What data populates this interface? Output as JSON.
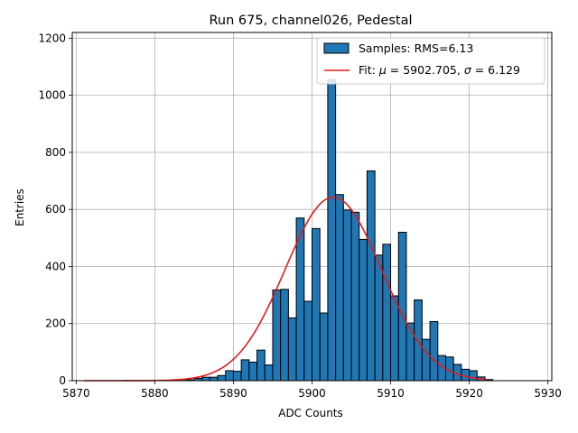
{
  "chart_data": {
    "type": "bar",
    "title": "Run 675, channel026, Pedestal",
    "xlabel": "ADC Counts",
    "ylabel": "Entries",
    "xlim": [
      5869.5,
      5930.5
    ],
    "ylim": [
      0,
      1220
    ],
    "xticks": [
      5870,
      5880,
      5890,
      5900,
      5910,
      5920,
      5930
    ],
    "yticks": [
      0,
      200,
      400,
      600,
      800,
      1000,
      1200
    ],
    "grid": true,
    "legend_position": "top-right",
    "bin_edges_start": 5871,
    "bin_width": 1,
    "values": [
      0,
      0,
      0,
      0,
      0,
      0,
      0,
      0,
      0,
      0,
      0,
      0,
      1,
      3,
      8,
      12,
      12,
      18,
      35,
      33,
      73,
      65,
      107,
      55,
      318,
      320,
      220,
      570,
      278,
      533,
      237,
      1055,
      652,
      598,
      590,
      495,
      735,
      440,
      478,
      297,
      520,
      202,
      283,
      145,
      207,
      88,
      83,
      57,
      40,
      35,
      13,
      4
    ],
    "series": [
      {
        "name": "Samples: RMS=6.13",
        "color": "#1f77b4"
      },
      {
        "name": "Fit: μ = 5902.705, σ = 6.129",
        "color": "#e41a1c"
      }
    ],
    "fit": {
      "mu": 5902.705,
      "sigma": 6.129,
      "amplitude": 643,
      "x_range": [
        5871,
        5922
      ]
    }
  },
  "legend": {
    "samples_label": "Samples: RMS=6.13",
    "fit_label_prefix": "Fit: ",
    "fit_mu_symbol": "μ",
    "fit_mu_value": " = 5902.705, ",
    "fit_sigma_symbol": "σ",
    "fit_sigma_value": " = 6.129"
  }
}
